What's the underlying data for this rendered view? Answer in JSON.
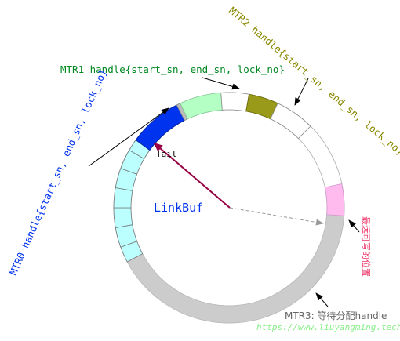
{
  "diagram": {
    "center_label": "LinkBuf",
    "tail_label": "Tail",
    "mtr0_label": "MTR0 handle{start_sn, end_sn, lock_no}",
    "mtr1_label": "MTR1 handle{start_sn, end_sn, lock_no}",
    "mtr2_label": "MTR2 handle{start_sn, end_sn, lock_no}",
    "mtr3_label": "MTR3: 等待分配handle",
    "writable_label": "最远可写的位置",
    "watermark": "https://www.liuyangming.tech/"
  },
  "colors": {
    "mtr0": "#0033ee",
    "mtr1": "#008822",
    "mtr2": "#888800",
    "mtr3": "#666666",
    "cyan_segments": "#bbffff",
    "green_segment": "#b3ffc4",
    "olive_segment": "#99991a",
    "blue_segment": "#0033ee",
    "pink_segment": "#ffbbee",
    "gray_segment": "#cccccc",
    "tail_arrow": "#990044",
    "writable": "#ee3366",
    "watermark": "#88ee88"
  }
}
